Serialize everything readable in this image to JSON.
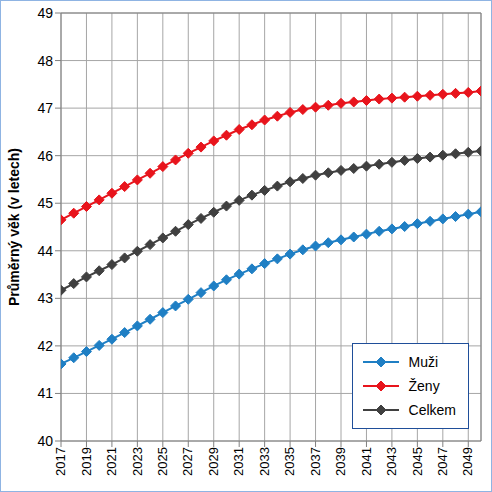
{
  "chart_data": {
    "type": "line",
    "y_label": "Průměrný věk (v letech)",
    "x": [
      2017,
      2018,
      2019,
      2020,
      2021,
      2022,
      2023,
      2024,
      2025,
      2026,
      2027,
      2028,
      2029,
      2030,
      2031,
      2032,
      2033,
      2034,
      2035,
      2036,
      2037,
      2038,
      2039,
      2040,
      2041,
      2042,
      2043,
      2044,
      2045,
      2046,
      2047,
      2048,
      2049,
      2050
    ],
    "series": [
      {
        "name": "Muži",
        "color": "#1f7fc4",
        "marker": "diamond",
        "values": [
          41.62,
          41.75,
          41.88,
          42.01,
          42.14,
          42.28,
          42.42,
          42.56,
          42.7,
          42.84,
          42.98,
          43.12,
          43.26,
          43.39,
          43.51,
          43.62,
          43.73,
          43.83,
          43.93,
          44.02,
          44.1,
          44.17,
          44.23,
          44.29,
          44.35,
          44.41,
          44.46,
          44.51,
          44.57,
          44.62,
          44.67,
          44.72,
          44.77,
          44.82
        ]
      },
      {
        "name": "Ženy",
        "color": "#e8141c",
        "marker": "diamond",
        "values": [
          44.65,
          44.79,
          44.93,
          45.07,
          45.21,
          45.35,
          45.49,
          45.63,
          45.77,
          45.91,
          46.05,
          46.18,
          46.31,
          46.43,
          46.55,
          46.65,
          46.75,
          46.83,
          46.91,
          46.97,
          47.02,
          47.06,
          47.1,
          47.13,
          47.16,
          47.19,
          47.21,
          47.23,
          47.25,
          47.27,
          47.29,
          47.31,
          47.33,
          47.36
        ]
      },
      {
        "name": "Celkem",
        "color": "#404040",
        "marker": "diamond",
        "values": [
          43.17,
          43.31,
          43.45,
          43.58,
          43.71,
          43.85,
          43.99,
          44.13,
          44.27,
          44.41,
          44.55,
          44.68,
          44.81,
          44.94,
          45.06,
          45.17,
          45.27,
          45.36,
          45.45,
          45.52,
          45.59,
          45.64,
          45.69,
          45.73,
          45.78,
          45.82,
          45.86,
          45.9,
          45.94,
          45.97,
          46.01,
          46.04,
          46.07,
          46.1
        ]
      }
    ],
    "xlim": [
      2017,
      2050
    ],
    "xticks": [
      2017,
      2019,
      2021,
      2023,
      2025,
      2027,
      2029,
      2031,
      2033,
      2035,
      2037,
      2039,
      2041,
      2043,
      2045,
      2047,
      2049
    ],
    "ylim": [
      40,
      49
    ],
    "yticks": [
      40,
      41,
      42,
      43,
      44,
      45,
      46,
      47,
      48,
      49
    ],
    "grid": true,
    "legend": "bottom-right"
  }
}
